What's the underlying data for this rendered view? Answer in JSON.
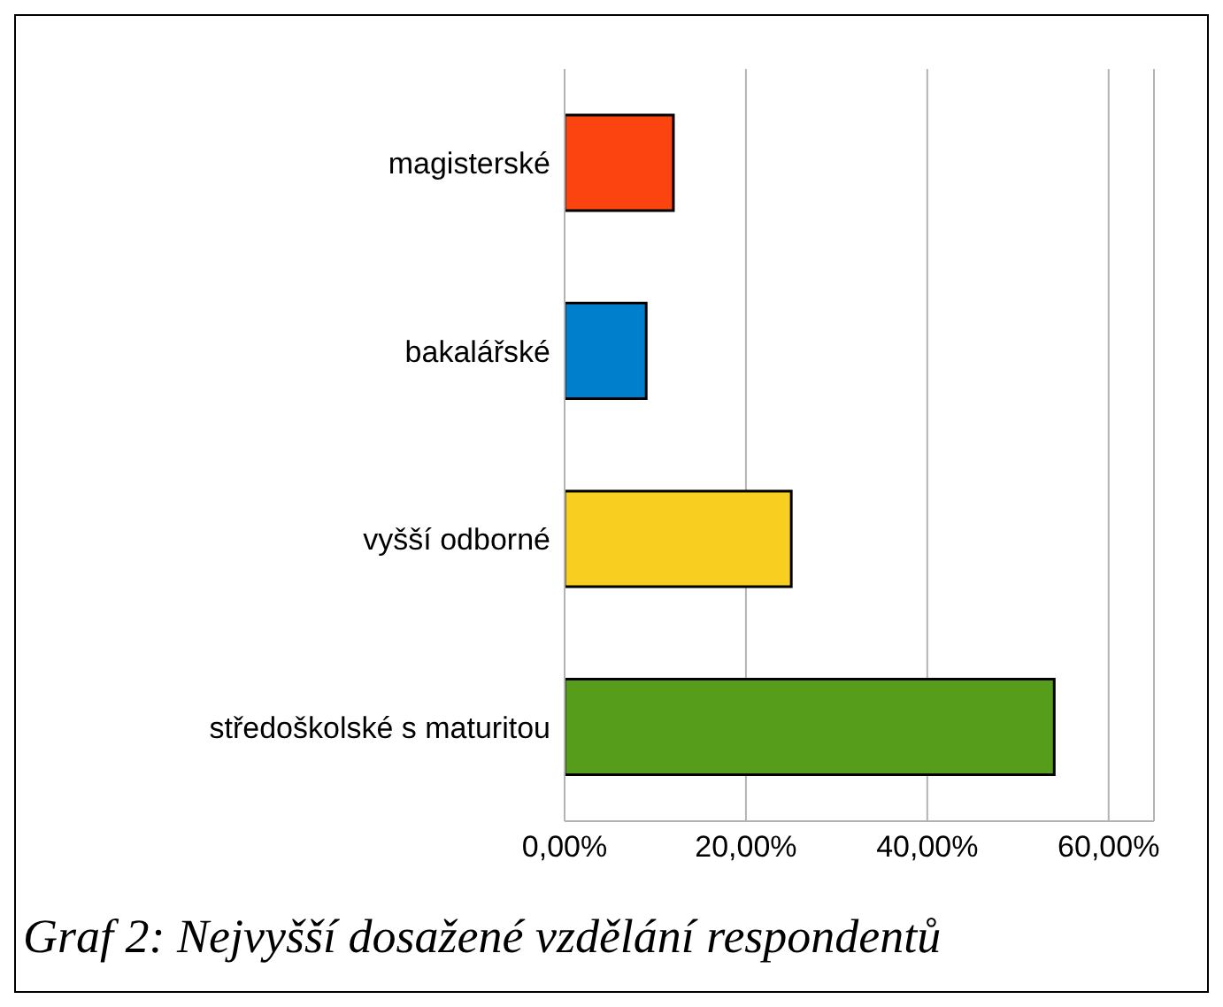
{
  "chart_data": {
    "type": "bar",
    "orientation": "horizontal",
    "categories": [
      "magisterské",
      "bakalářské",
      "vyšší odborné",
      "středoškolské s maturitou"
    ],
    "values": [
      12,
      9,
      25,
      54
    ],
    "colors": [
      "#fc4410",
      "#0080cc",
      "#f8cf20",
      "#579d1c"
    ],
    "xlim": [
      0,
      65
    ],
    "xticks": [
      {
        "value": 0,
        "label": "0,00%"
      },
      {
        "value": 20,
        "label": "20,00%"
      },
      {
        "value": 40,
        "label": "40,00%"
      },
      {
        "value": 60,
        "label": "60,00%"
      }
    ],
    "grid": "x",
    "annotations": [
      "Graf 2: Nejvyšší dosažené vzdělání respondentů"
    ]
  }
}
